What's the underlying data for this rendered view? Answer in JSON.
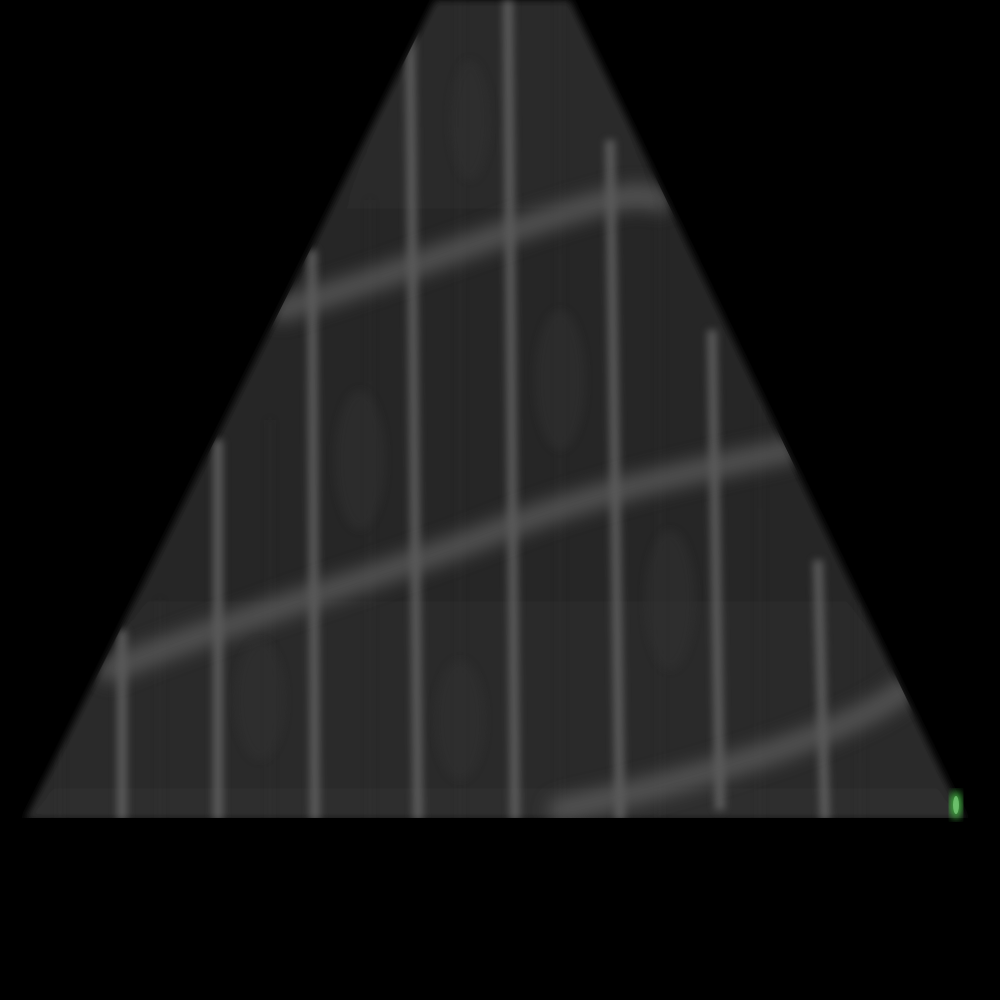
{
  "image": {
    "subject": "ultrasound-sector-scan",
    "colors": {
      "background": "#000000",
      "sector_fill": "#262626",
      "grid_line": "#6a6a6a",
      "depth_band": "#555555",
      "marker": "#3fae3f"
    },
    "icons": {
      "marker": "green-dot-icon"
    }
  }
}
